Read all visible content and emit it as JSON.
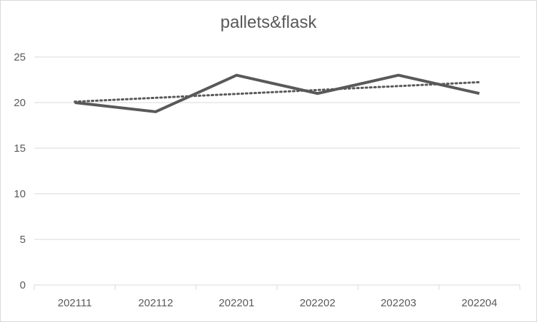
{
  "chart_data": {
    "type": "line",
    "title": "pallets&flask",
    "xlabel": "",
    "ylabel": "",
    "categories": [
      "202111",
      "202112",
      "202201",
      "202202",
      "202203",
      "202204"
    ],
    "series": [
      {
        "values": [
          20,
          19,
          23,
          21,
          23,
          21
        ],
        "color": "#595959",
        "style": "solid"
      }
    ],
    "trendline": {
      "type": "linear",
      "style": "dotted",
      "color": "#595959"
    },
    "ylim": [
      0,
      25
    ],
    "yticks": [
      "0",
      "5",
      "10",
      "15",
      "20",
      "25"
    ],
    "grid": true,
    "legend": "none"
  }
}
